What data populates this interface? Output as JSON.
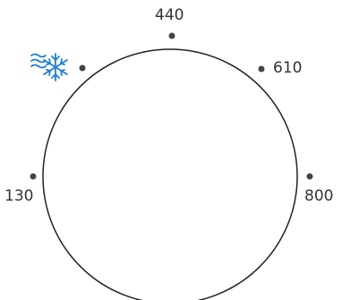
{
  "dial": {
    "marks": [
      {
        "id": "top",
        "label": "440"
      },
      {
        "id": "right",
        "label": "610"
      },
      {
        "id": "far-right",
        "label": "800"
      },
      {
        "id": "left",
        "label": "130"
      }
    ],
    "icon": "snowflake-wind-icon",
    "colors": {
      "ring": "#222222",
      "dot": "#444444",
      "icon": "#1e7fd0",
      "label": "#333333"
    }
  }
}
